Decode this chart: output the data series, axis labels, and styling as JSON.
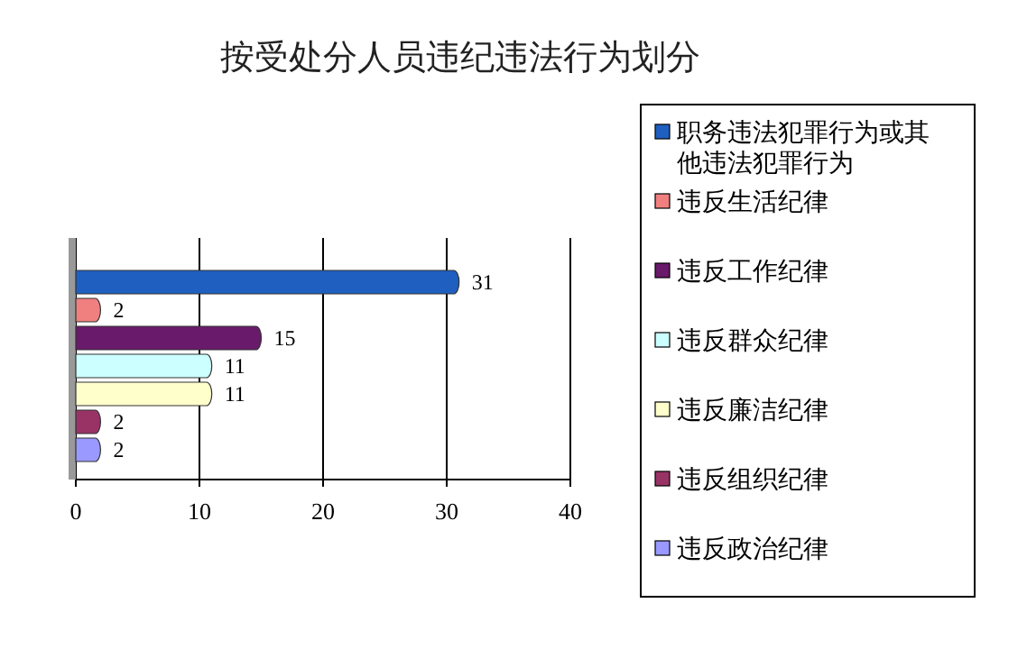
{
  "chart_data": {
    "type": "bar",
    "orientation": "horizontal",
    "title": "按受处分人员违纪违法行为划分",
    "categories": [
      null
    ],
    "series": [
      {
        "name": "职务违法犯罪行为或其他违法犯罪行为",
        "color": "#1f5fc0",
        "values": [
          31
        ]
      },
      {
        "name": "违反生活纪律",
        "color": "#f08080",
        "values": [
          2
        ]
      },
      {
        "name": "违反工作纪律",
        "color": "#6a1a6a",
        "values": [
          15
        ]
      },
      {
        "name": "违反群众纪律",
        "color": "#ccffff",
        "values": [
          11
        ]
      },
      {
        "name": "违反廉洁纪律",
        "color": "#ffffcc",
        "values": [
          11
        ]
      },
      {
        "name": "违反组织纪律",
        "color": "#993366",
        "values": [
          2
        ]
      },
      {
        "name": "违反政治纪律",
        "color": "#9999ff",
        "values": [
          2
        ]
      }
    ],
    "xlim": [
      0,
      40
    ],
    "xticks": [
      0,
      10,
      20,
      30,
      40
    ],
    "grid": "x",
    "legend": "right",
    "data_labels": true
  }
}
